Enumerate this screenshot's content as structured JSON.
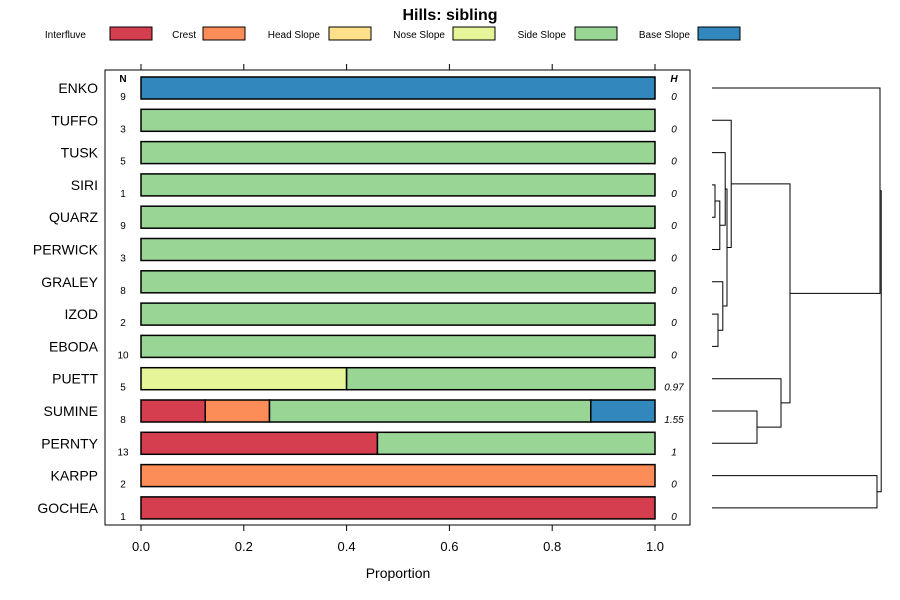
{
  "chart_data": {
    "type": "bar",
    "stacked": true,
    "orientation": "horizontal",
    "title": "Hills: sibling",
    "xlabel": "Proportion",
    "xlim": [
      0,
      1
    ],
    "ticks": [
      "0.0",
      "0.2",
      "0.4",
      "0.6",
      "0.8",
      "1.0"
    ],
    "tick_values": [
      0,
      0.2,
      0.4,
      0.6,
      0.8,
      1.0
    ],
    "n_header": "N",
    "h_header": "H",
    "legend": [
      {
        "name": "Interfluve",
        "color": "#d53e4f"
      },
      {
        "name": "Crest",
        "color": "#fc8d59"
      },
      {
        "name": "Head Slope",
        "color": "#fee08b"
      },
      {
        "name": "Nose Slope",
        "color": "#e6f598"
      },
      {
        "name": "Side Slope",
        "color": "#99d594"
      },
      {
        "name": "Base Slope",
        "color": "#3288bd"
      }
    ],
    "rows": [
      {
        "name": "ENKO",
        "n": "9",
        "h": "0",
        "values": [
          0,
          0,
          0,
          0,
          0,
          1
        ]
      },
      {
        "name": "TUFFO",
        "n": "3",
        "h": "0",
        "values": [
          0,
          0,
          0,
          0,
          1,
          0
        ]
      },
      {
        "name": "TUSK",
        "n": "5",
        "h": "0",
        "values": [
          0,
          0,
          0,
          0,
          1,
          0
        ]
      },
      {
        "name": "SIRI",
        "n": "1",
        "h": "0",
        "values": [
          0,
          0,
          0,
          0,
          1,
          0
        ]
      },
      {
        "name": "QUARZ",
        "n": "9",
        "h": "0",
        "values": [
          0,
          0,
          0,
          0,
          1,
          0
        ]
      },
      {
        "name": "PERWICK",
        "n": "3",
        "h": "0",
        "values": [
          0,
          0,
          0,
          0,
          1,
          0
        ]
      },
      {
        "name": "GRALEY",
        "n": "8",
        "h": "0",
        "values": [
          0,
          0,
          0,
          0,
          1,
          0
        ]
      },
      {
        "name": "IZOD",
        "n": "2",
        "h": "0",
        "values": [
          0,
          0,
          0,
          0,
          1,
          0
        ]
      },
      {
        "name": "EBODA",
        "n": "10",
        "h": "0",
        "values": [
          0,
          0,
          0,
          0,
          1,
          0
        ]
      },
      {
        "name": "PUETT",
        "n": "5",
        "h": "0.97",
        "values": [
          0,
          0,
          0,
          0.4,
          0.6,
          0
        ]
      },
      {
        "name": "SUMINE",
        "n": "8",
        "h": "1.55",
        "values": [
          0.125,
          0.125,
          0,
          0,
          0.625,
          0.125
        ]
      },
      {
        "name": "PERNTY",
        "n": "13",
        "h": "1",
        "values": [
          0.46,
          0,
          0,
          0,
          0.54,
          0
        ]
      },
      {
        "name": "KARPP",
        "n": "2",
        "h": "0",
        "values": [
          0,
          1,
          0,
          0,
          0,
          0
        ]
      },
      {
        "name": "GOCHEA",
        "n": "1",
        "h": "0",
        "values": [
          1,
          0,
          0,
          0,
          0,
          0
        ]
      }
    ],
    "dendrogram": {
      "leaf_order": [
        "ENKO",
        "TUFFO",
        "TUSK",
        "SIRI",
        "QUARZ",
        "PERWICK",
        "GRALEY",
        "IZOD",
        "EBODA",
        "PUETT",
        "SUMINE",
        "PERNTY",
        "KARPP",
        "GOCHEA"
      ],
      "merges": [
        {
          "a": "SIRI",
          "b": "QUARZ",
          "height": 0.05
        },
        {
          "a": "m0",
          "b": "PERWICK",
          "height": 0.13
        },
        {
          "a": "TUSK",
          "b": "m1",
          "height": 0.22
        },
        {
          "a": "IZOD",
          "b": "EBODA",
          "height": 0.1
        },
        {
          "a": "GRALEY",
          "b": "m3",
          "height": 0.18
        },
        {
          "a": "m2",
          "b": "m4",
          "height": 0.25
        },
        {
          "a": "TUFFO",
          "b": "m5",
          "height": 0.32
        },
        {
          "a": "SUMINE",
          "b": "PERNTY",
          "height": 0.75
        },
        {
          "a": "PUETT",
          "b": "m7",
          "height": 1.15
        },
        {
          "a": "m6",
          "b": "m8",
          "height": 1.3
        },
        {
          "a": "KARPP",
          "b": "GOCHEA",
          "height": 2.75
        },
        {
          "a": "ENKO",
          "b": "m9",
          "height": 2.8
        },
        {
          "a": "m11",
          "b": "m10",
          "height": 2.82
        }
      ],
      "max_height": 3.0
    }
  }
}
